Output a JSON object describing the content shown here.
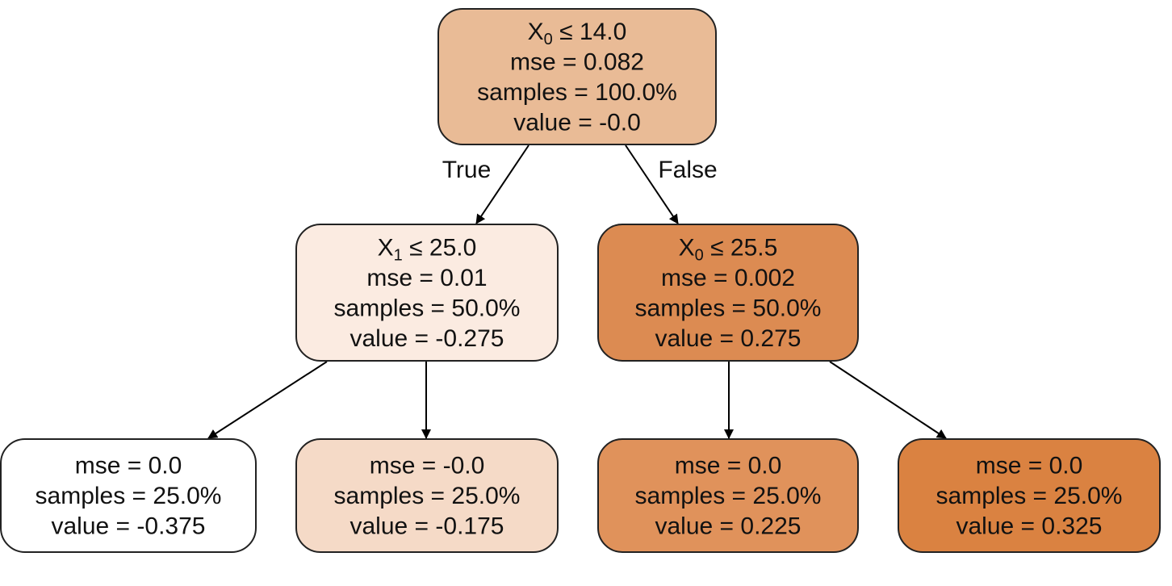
{
  "nodes": [
    {
      "id": "root",
      "split": {
        "feature": "X",
        "sub": "0",
        "rest": " ≤ 14.0"
      },
      "mse": "mse = 0.082",
      "samples": "samples = 100.0%",
      "value": "value = -0.0",
      "color": "#e9bb96"
    },
    {
      "id": "left",
      "split": {
        "feature": "X",
        "sub": "1",
        "rest": " ≤ 25.0"
      },
      "mse": "mse = 0.01",
      "samples": "samples = 50.0%",
      "value": "value = -0.275",
      "color": "#fbebe1"
    },
    {
      "id": "right",
      "split": {
        "feature": "X",
        "sub": "0",
        "rest": " ≤ 25.5"
      },
      "mse": "mse = 0.002",
      "samples": "samples = 50.0%",
      "value": "value = 0.275",
      "color": "#dc8b52"
    },
    {
      "id": "leaf-ll",
      "mse": "mse = 0.0",
      "samples": "samples = 25.0%",
      "value": "value = -0.375",
      "color": "#ffffff"
    },
    {
      "id": "leaf-lr",
      "mse": "mse = -0.0",
      "samples": "samples = 25.0%",
      "value": "value = -0.175",
      "color": "#f5dac7"
    },
    {
      "id": "leaf-rl",
      "mse": "mse = 0.0",
      "samples": "samples = 25.0%",
      "value": "value = 0.225",
      "color": "#e0925b"
    },
    {
      "id": "leaf-rr",
      "mse": "mse = 0.0",
      "samples": "samples = 25.0%",
      "value": "value = 0.325",
      "color": "#da8241"
    }
  ],
  "edges": [
    {
      "from": "root",
      "to": "left",
      "label": "True"
    },
    {
      "from": "root",
      "to": "right",
      "label": "False"
    },
    {
      "from": "left",
      "to": "leaf-ll"
    },
    {
      "from": "left",
      "to": "leaf-lr"
    },
    {
      "from": "right",
      "to": "leaf-rl"
    },
    {
      "from": "right",
      "to": "leaf-rr"
    }
  ]
}
